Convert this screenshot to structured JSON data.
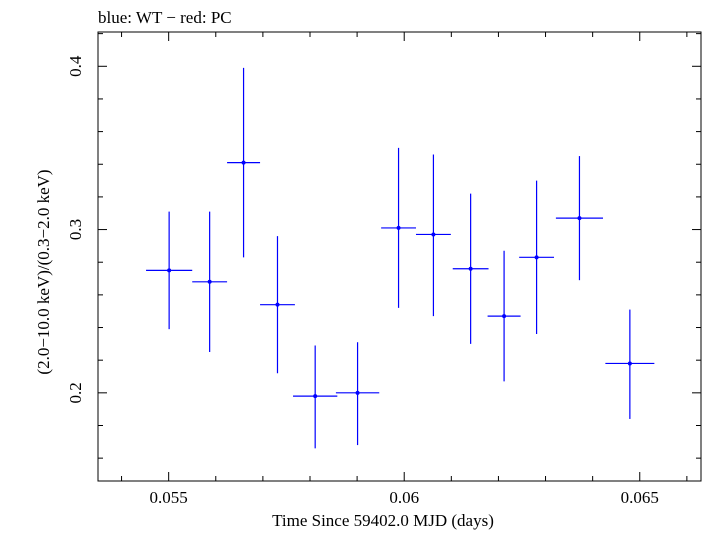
{
  "chart_data": {
    "type": "scatter",
    "title": "blue: WT − red: PC",
    "xlabel": "Time Since 59402.0 MJD (days)",
    "ylabel": "(2.0−10.0 keV)/(0.3−2.0 keV)",
    "xlim": [
      0.0535,
      0.0663
    ],
    "ylim": [
      0.146,
      0.421
    ],
    "x_ticks": [
      0.055,
      0.06,
      0.065
    ],
    "x_tick_labels": [
      "0.055",
      "0.06",
      "0.065"
    ],
    "y_ticks": [
      0.2,
      0.3,
      0.4
    ],
    "y_tick_labels": [
      "0.2",
      "0.3",
      "0.4"
    ],
    "grid": false,
    "series": [
      {
        "color": "#0000ff",
        "points": [
          {
            "x": 0.05501,
            "xerr": 0.00049,
            "y": 0.275,
            "yerr_low": 0.036,
            "yerr_high": 0.036
          },
          {
            "x": 0.05587,
            "xerr": 0.00037,
            "y": 0.268,
            "yerr_low": 0.043,
            "yerr_high": 0.043
          },
          {
            "x": 0.05659,
            "xerr": 0.00035,
            "y": 0.341,
            "yerr_low": 0.058,
            "yerr_high": 0.058
          },
          {
            "x": 0.05731,
            "xerr": 0.00037,
            "y": 0.254,
            "yerr_low": 0.042,
            "yerr_high": 0.042
          },
          {
            "x": 0.05811,
            "xerr": 0.00047,
            "y": 0.198,
            "yerr_low": 0.032,
            "yerr_high": 0.031
          },
          {
            "x": 0.05901,
            "xerr": 0.00046,
            "y": 0.2,
            "yerr_low": 0.032,
            "yerr_high": 0.031
          },
          {
            "x": 0.05988,
            "xerr": 0.00037,
            "y": 0.301,
            "yerr_low": 0.049,
            "yerr_high": 0.049
          },
          {
            "x": 0.06062,
            "xerr": 0.00037,
            "y": 0.297,
            "yerr_low": 0.05,
            "yerr_high": 0.049
          },
          {
            "x": 0.06141,
            "xerr": 0.00038,
            "y": 0.276,
            "yerr_low": 0.046,
            "yerr_high": 0.046
          },
          {
            "x": 0.06212,
            "xerr": 0.00035,
            "y": 0.247,
            "yerr_low": 0.04,
            "yerr_high": 0.04
          },
          {
            "x": 0.06281,
            "xerr": 0.00037,
            "y": 0.283,
            "yerr_low": 0.047,
            "yerr_high": 0.047
          },
          {
            "x": 0.06372,
            "xerr": 0.0005,
            "y": 0.307,
            "yerr_low": 0.038,
            "yerr_high": 0.038
          },
          {
            "x": 0.06479,
            "xerr": 0.00052,
            "y": 0.218,
            "yerr_low": 0.034,
            "yerr_high": 0.033
          }
        ]
      }
    ]
  }
}
